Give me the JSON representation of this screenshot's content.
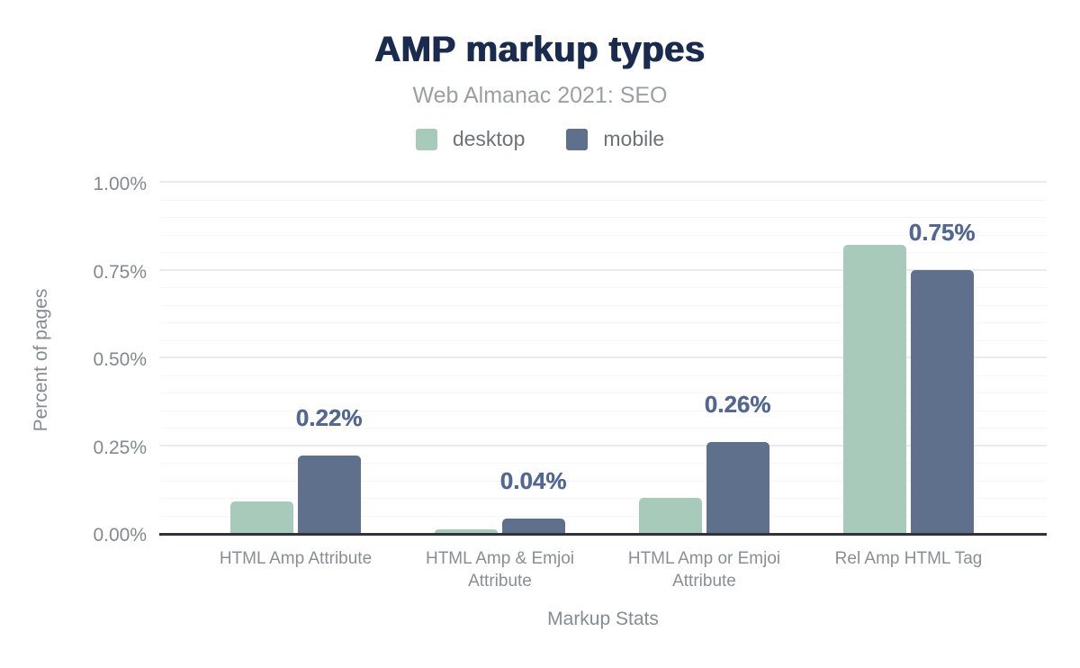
{
  "chart_data": {
    "type": "bar",
    "title": "AMP markup types",
    "subtitle": "Web Almanac 2021: SEO",
    "xlabel": "Markup Stats",
    "ylabel": "Percent of pages",
    "categories": [
      "HTML Amp Attribute",
      "HTML Amp & Emjoi Attribute",
      "HTML Amp or Emjoi Attribute",
      "Rel Amp HTML Tag"
    ],
    "series": [
      {
        "name": "desktop",
        "color": "#a7cabb",
        "values": [
          0.09,
          0.01,
          0.1,
          0.82
        ],
        "data_labels": [
          "",
          "",
          "",
          ""
        ]
      },
      {
        "name": "mobile",
        "color": "#5e708c",
        "values": [
          0.22,
          0.04,
          0.26,
          0.75
        ],
        "data_labels": [
          "0.22%",
          "0.04%",
          "0.26%",
          "0.75%"
        ]
      }
    ],
    "ylim": [
      0,
      1.0
    ],
    "yticks": [
      {
        "value": 1.0,
        "label": "1.00%"
      },
      {
        "value": 0.75,
        "label": "0.75%"
      },
      {
        "value": 0.5,
        "label": "0.50%"
      },
      {
        "value": 0.25,
        "label": "0.25%"
      },
      {
        "value": 0.0,
        "label": "0.00%"
      }
    ],
    "major_gridline_step": 0.25,
    "minor_gridline_step": 0.05,
    "grid": true,
    "legend_position": "top",
    "colors": {
      "title": "#1b2b4d",
      "subtitle": "#9b9fa3",
      "axis_text": "#85888c",
      "data_label": "#54688f",
      "axis_line": "#32323c",
      "gridline_major": "#ebebeb",
      "gridline_minor": "#f6f6f6"
    }
  }
}
